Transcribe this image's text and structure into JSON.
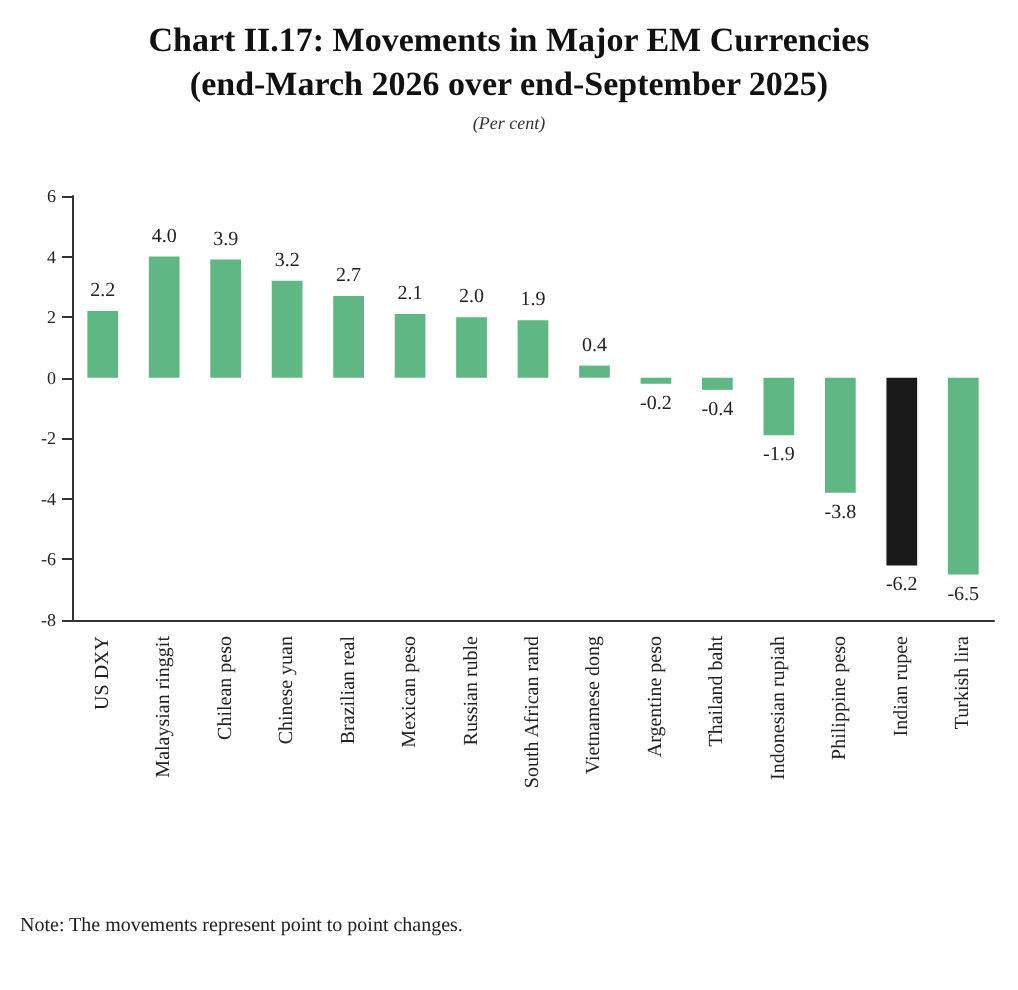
{
  "chart_data": {
    "type": "bar",
    "title": "Chart II.17: Movements in Major EM Currencies\n(end-March 2026 over end-September 2025)",
    "subtitle": "(Per cent)",
    "categories": [
      "US DXY",
      "Malaysian ringgit",
      "Chilean peso",
      "Chinese yuan",
      "Brazilian real",
      "Mexican peso",
      "Russian ruble",
      "South African rand",
      "Vietnamese dong",
      "Argentine peso",
      "Thailand baht",
      "Indonesian rupiah",
      "Philippine peso",
      "Indian rupee",
      "Turkish lira"
    ],
    "values": [
      2.2,
      4.0,
      3.9,
      3.2,
      2.7,
      2.1,
      2.0,
      1.9,
      0.4,
      -0.2,
      -0.4,
      -1.9,
      -3.8,
      -6.2,
      -6.5
    ],
    "value_labels": [
      "2.2",
      "4.0",
      "3.9",
      "3.2",
      "2.7",
      "2.1",
      "2.0",
      "1.9",
      "0.4",
      "-0.2",
      "-0.4",
      "-1.9",
      "-3.8",
      "-6.2",
      "-6.5"
    ],
    "colors": [
      "#5fb784",
      "#5fb784",
      "#5fb784",
      "#5fb784",
      "#5fb784",
      "#5fb784",
      "#5fb784",
      "#5fb784",
      "#5fb784",
      "#5fb784",
      "#5fb784",
      "#5fb784",
      "#5fb784",
      "#1a1a1a",
      "#5fb784"
    ],
    "ylim": [
      -8,
      6
    ],
    "yticks": [
      -8,
      -6,
      -4,
      -2,
      0,
      2,
      4,
      6
    ],
    "grid": false,
    "annotations": [
      "Note: The movements represent point to point changes."
    ]
  }
}
